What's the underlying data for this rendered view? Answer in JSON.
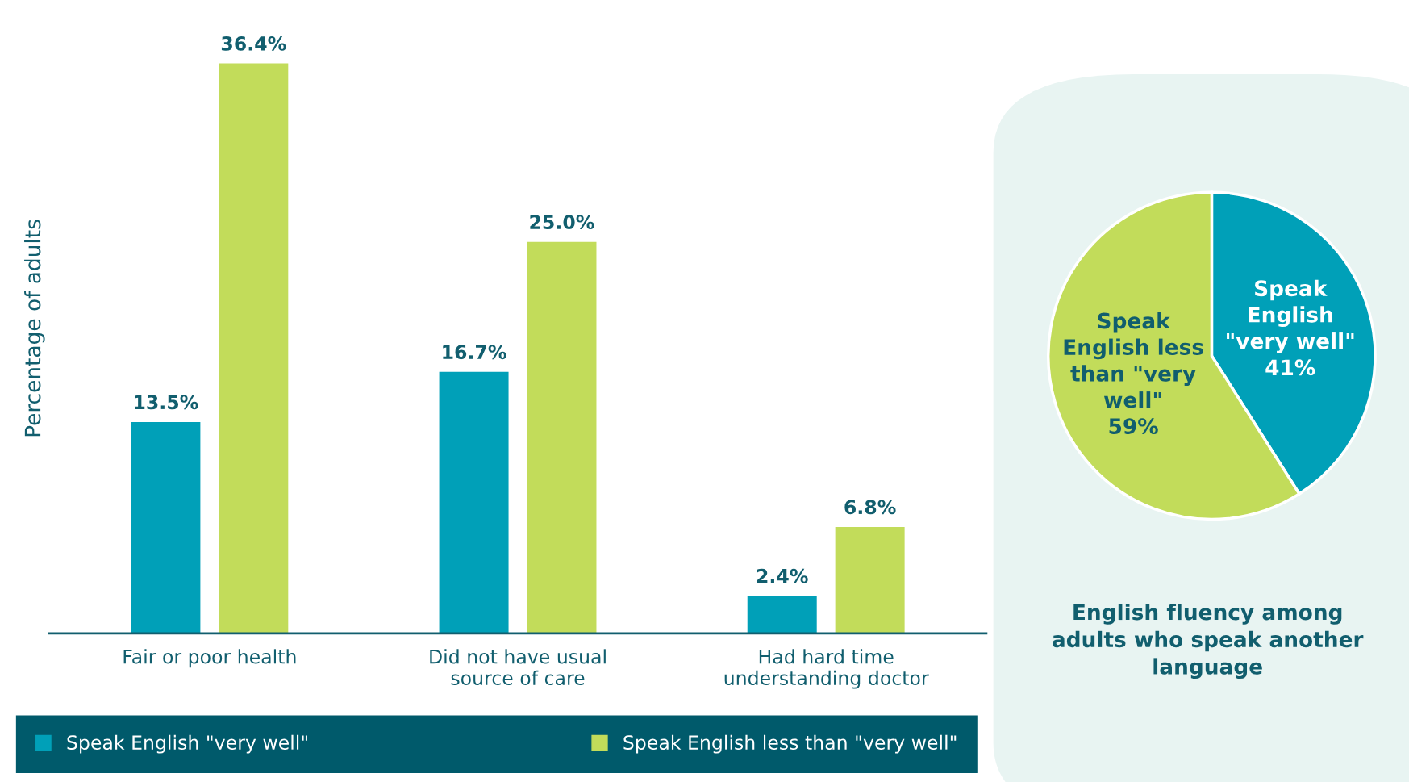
{
  "chart_data": [
    {
      "type": "bar",
      "ylabel": "Percentage of adults",
      "categories": [
        "Fair or poor health",
        "Did not have usual\nsource of care",
        "Had hard time\nunderstanding doctor"
      ],
      "series": [
        {
          "name": "Speak English \"very well\"",
          "color": "#00a0b8",
          "values": [
            13.5,
            16.7,
            2.4
          ],
          "value_labels": [
            "13.5%",
            "16.7%",
            "2.4%"
          ]
        },
        {
          "name": "Speak English less than \"very well\"",
          "color": "#c2dc5a",
          "values": [
            36.4,
            25.0,
            6.8
          ],
          "value_labels": [
            "36.4%",
            "25.0%",
            "6.8%"
          ]
        }
      ],
      "legend": "bottom",
      "grid": false
    },
    {
      "type": "pie",
      "title": "English fluency among\nadults who speak another\nlanguage",
      "categories": [
        "Speak\nEnglish\n\"very well\"",
        "Speak\nEnglish less\nthan \"very\nwell\""
      ],
      "values": [
        41,
        59
      ],
      "value_labels": [
        "41%",
        "59%"
      ],
      "colors": [
        "#00a0b8",
        "#c2dc5a"
      ]
    }
  ]
}
